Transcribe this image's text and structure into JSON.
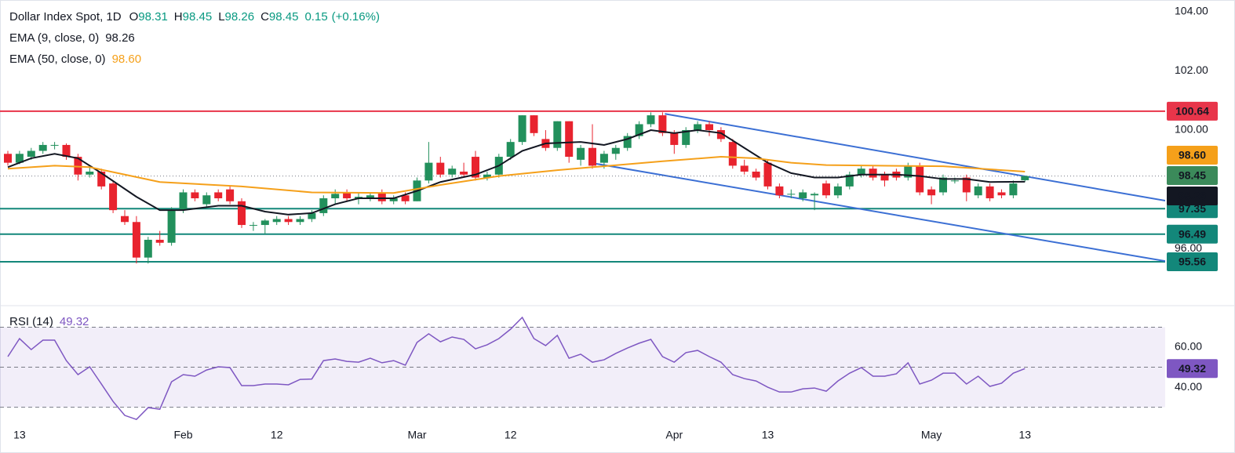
{
  "chart_data": [
    {
      "type": "candlestick",
      "title": "Dollar Index Spot, 1D",
      "header": [
        {
          "prefix": "O",
          "value": 98.31
        },
        {
          "prefix": "H",
          "value": 98.45
        },
        {
          "prefix": "L",
          "value": 98.26
        },
        {
          "prefix": "C",
          "value": 98.45
        }
      ],
      "change": 0.15,
      "change_pct": {
        "value": 0.16,
        "label": "(+0.16%)"
      },
      "header_color": "#089981",
      "categories": [
        null,
        "13",
        null,
        null,
        null,
        null,
        null,
        null,
        null,
        null,
        null,
        null,
        null,
        null,
        null,
        "Feb",
        null,
        null,
        null,
        null,
        null,
        null,
        null,
        "12",
        null,
        null,
        null,
        null,
        null,
        null,
        null,
        null,
        null,
        null,
        null,
        "Mar",
        null,
        null,
        null,
        null,
        null,
        null,
        null,
        "12",
        null,
        null,
        null,
        null,
        null,
        null,
        null,
        null,
        null,
        null,
        null,
        null,
        null,
        "Apr",
        null,
        null,
        null,
        null,
        null,
        null,
        null,
        "13",
        null,
        null,
        null,
        null,
        null,
        null,
        null,
        null,
        null,
        null,
        null,
        null,
        null,
        "May",
        null,
        null,
        null,
        null,
        null,
        null,
        null,
        "13"
      ],
      "open": [
        99.2,
        98.9,
        99.1,
        99.3,
        99.5,
        99.5,
        99.1,
        98.5,
        98.6,
        98.2,
        97.1,
        96.9,
        95.7,
        96.3,
        96.2,
        97.3,
        97.9,
        97.5,
        97.9,
        98.0,
        97.6,
        96.8,
        96.8,
        96.9,
        97.0,
        96.9,
        97.0,
        97.2,
        97.7,
        97.9,
        97.7,
        97.7,
        97.9,
        97.6,
        97.8,
        97.6,
        98.3,
        98.9,
        98.5,
        98.6,
        99.1,
        98.4,
        98.5,
        99.1,
        99.6,
        100.5,
        99.7,
        99.4,
        100.3,
        99.0,
        99.4,
        98.9,
        99.2,
        99.4,
        99.8,
        100.2,
        100.5,
        99.9,
        99.5,
        100.0,
        100.2,
        100.0,
        99.6,
        98.8,
        98.6,
        98.9,
        98.1,
        97.85,
        97.7,
        97.8,
        98.2,
        97.8,
        98.1,
        98.5,
        98.7,
        98.5,
        98.6,
        98.4,
        98.8,
        98.0,
        97.9,
        98.3,
        98.4,
        97.8,
        98.1,
        97.9,
        97.8,
        98.31
      ],
      "high": [
        99.3,
        99.3,
        99.4,
        99.6,
        99.6,
        99.55,
        99.2,
        98.8,
        98.7,
        98.3,
        97.3,
        97.1,
        96.4,
        96.6,
        97.4,
        98.0,
        98.0,
        97.9,
        98.0,
        98.1,
        97.7,
        96.9,
        97.0,
        97.1,
        97.1,
        97.1,
        97.3,
        97.8,
        98.0,
        98.0,
        97.9,
        97.9,
        98.0,
        97.8,
        97.9,
        98.4,
        99.6,
        99.1,
        98.8,
        98.9,
        99.3,
        98.6,
        99.2,
        99.7,
        100.5,
        100.5,
        100.0,
        100.3,
        100.3,
        99.5,
        100.2,
        99.3,
        99.5,
        99.9,
        100.3,
        100.6,
        100.6,
        100.0,
        100.1,
        100.3,
        100.3,
        100.1,
        99.7,
        99.0,
        98.7,
        99.0,
        98.2,
        98.0,
        98.0,
        97.9,
        98.3,
        98.2,
        98.6,
        98.8,
        98.8,
        98.6,
        98.7,
        98.9,
        98.9,
        98.1,
        98.5,
        98.4,
        98.5,
        98.2,
        98.2,
        98.0,
        98.3,
        98.45
      ],
      "low": [
        98.8,
        98.85,
        99.0,
        99.2,
        99.35,
        99.0,
        98.3,
        98.4,
        98.0,
        97.2,
        96.8,
        95.5,
        95.5,
        96.1,
        96.1,
        97.2,
        97.6,
        97.4,
        97.6,
        97.5,
        96.7,
        96.6,
        96.5,
        96.8,
        96.8,
        96.8,
        96.9,
        97.1,
        97.5,
        97.6,
        97.5,
        97.6,
        97.5,
        97.5,
        97.5,
        97.6,
        98.2,
        98.4,
        98.4,
        98.4,
        98.3,
        98.3,
        98.4,
        99.0,
        99.5,
        99.8,
        99.3,
        99.3,
        98.9,
        98.8,
        98.7,
        98.7,
        99.0,
        99.3,
        99.7,
        100.1,
        99.8,
        99.2,
        99.4,
        99.9,
        99.8,
        99.6,
        98.7,
        98.5,
        98.3,
        98.0,
        97.7,
        97.7,
        97.6,
        97.3,
        97.7,
        97.7,
        98.0,
        98.4,
        98.3,
        98.1,
        98.3,
        98.3,
        97.8,
        97.5,
        97.8,
        98.2,
        97.6,
        97.7,
        97.6,
        97.7,
        97.7,
        98.26
      ],
      "close": [
        98.9,
        99.2,
        99.3,
        99.5,
        99.5,
        99.1,
        98.5,
        98.6,
        98.1,
        97.3,
        96.9,
        95.7,
        96.3,
        96.2,
        97.3,
        97.9,
        97.7,
        97.8,
        97.7,
        97.6,
        96.8,
        96.8,
        96.95,
        97.0,
        96.9,
        97.0,
        97.2,
        97.7,
        97.85,
        97.7,
        97.75,
        97.8,
        97.6,
        97.7,
        97.6,
        98.3,
        98.9,
        98.5,
        98.7,
        98.5,
        98.4,
        98.5,
        99.1,
        99.6,
        100.5,
        99.9,
        99.4,
        100.3,
        99.1,
        99.4,
        98.8,
        99.2,
        99.4,
        99.8,
        100.2,
        100.5,
        99.9,
        99.5,
        100.0,
        100.2,
        100.0,
        99.7,
        98.8,
        98.6,
        98.4,
        98.1,
        97.8,
        97.85,
        97.9,
        97.85,
        97.8,
        98.1,
        98.5,
        98.7,
        98.4,
        98.3,
        98.4,
        98.8,
        97.9,
        97.8,
        98.4,
        98.3,
        97.9,
        98.1,
        97.7,
        97.8,
        98.2,
        98.45
      ],
      "up_color": "#22905c",
      "down_color": "#e8232e",
      "last_color": "#3b8a5a",
      "lines": [
        {
          "name": "EMA (9, close, 0)",
          "color": "#131722",
          "value_color": "#131722",
          "x": [
            0,
            2,
            4,
            6,
            8,
            11,
            13,
            15,
            18,
            20,
            22,
            24,
            26,
            28,
            30,
            33,
            35,
            37,
            40,
            42,
            44,
            46,
            49,
            51,
            53,
            55,
            57,
            59,
            61,
            63,
            65,
            67,
            69,
            71,
            73,
            76,
            78,
            80,
            82,
            84,
            87
          ],
          "values": [
            98.75,
            99.05,
            99.2,
            99.05,
            98.55,
            97.75,
            97.3,
            97.3,
            97.45,
            97.45,
            97.25,
            97.15,
            97.2,
            97.5,
            97.7,
            97.7,
            97.95,
            98.25,
            98.5,
            98.8,
            99.3,
            99.55,
            99.6,
            99.5,
            99.7,
            100.0,
            99.9,
            100.0,
            99.9,
            99.4,
            98.9,
            98.55,
            98.4,
            98.4,
            98.5,
            98.5,
            98.45,
            98.35,
            98.35,
            98.25,
            98.26
          ],
          "last": 98.26
        },
        {
          "name": "EMA (50, close, 0)",
          "color": "#f5a01a",
          "value_color": "#f5a01a",
          "x": [
            0,
            4,
            7,
            10,
            13,
            20,
            26,
            33,
            37,
            42,
            47,
            50,
            56,
            61,
            64,
            67,
            70,
            80,
            87
          ],
          "values": [
            98.7,
            98.8,
            98.75,
            98.5,
            98.25,
            98.1,
            97.9,
            97.88,
            98.15,
            98.45,
            98.65,
            98.75,
            98.95,
            99.1,
            99.05,
            98.9,
            98.82,
            98.78,
            98.6
          ],
          "last": {
            "value": 98.6,
            "label": "98.60"
          }
        }
      ],
      "trendlines": [
        {
          "color": "#3b6fd4",
          "x": [
            56.2,
            99
          ],
          "values": [
            100.55,
            97.62
          ]
        },
        {
          "color": "#3b6fd4",
          "x": [
            50.1,
            99
          ],
          "values": [
            98.88,
            95.58
          ]
        }
      ],
      "levels": [
        {
          "value": 100.64,
          "color": "#e8354a"
        },
        {
          "value": 97.35,
          "color": "#13877a"
        },
        {
          "value": 96.49,
          "color": "#13877a"
        },
        {
          "value": 95.56,
          "color": "#13877a"
        }
      ],
      "ylim": [
        94.21,
        104.39
      ],
      "yticks": [
        {
          "value": 96,
          "label": "96.00"
        },
        {
          "value": 100,
          "label": "100.00"
        },
        {
          "value": 102,
          "label": "102.00"
        },
        {
          "value": 104,
          "label": "104.00"
        }
      ]
    },
    {
      "type": "line",
      "series": [
        {
          "name": "RSI (14)",
          "color": "#7e57c2",
          "values": [
            55.3,
            64.3,
            58.8,
            63.5,
            63.5,
            53.3,
            46.3,
            50.2,
            41.6,
            32.9,
            25.9,
            23.9,
            29.8,
            29,
            42.7,
            46.3,
            45.5,
            48.6,
            50.2,
            49.8,
            40.8,
            40.8,
            41.6,
            41.6,
            41.2,
            43.9,
            44.1,
            53.3,
            54.1,
            52.9,
            52.5,
            54.5,
            52.2,
            53.3,
            51,
            62.4,
            66.7,
            62.7,
            65.1,
            63.9,
            59.2,
            61.2,
            64.3,
            69,
            74.9,
            64.3,
            60.8,
            65.9,
            54.5,
            56.5,
            52.5,
            53.7,
            56.9,
            59.6,
            62,
            63.9,
            55.3,
            52.5,
            57.3,
            58.4,
            55.3,
            52.5,
            46.3,
            44.3,
            43.1,
            40,
            37.6,
            37.6,
            39.2,
            39.6,
            38,
            43.1,
            47,
            49.8,
            45.5,
            45.5,
            46.7,
            52.2,
            41.6,
            43.5,
            47,
            47,
            41.6,
            45.5,
            40.4,
            42,
            47,
            49.32
          ]
        }
      ],
      "band": [
        30,
        70
      ],
      "band_color": "#7e57c2",
      "midline": 50,
      "ylim": [
        22,
        78.8
      ],
      "yticks": [
        {
          "value": 40,
          "label": "40.00"
        },
        {
          "value": 60,
          "label": "60.00"
        }
      ]
    }
  ]
}
